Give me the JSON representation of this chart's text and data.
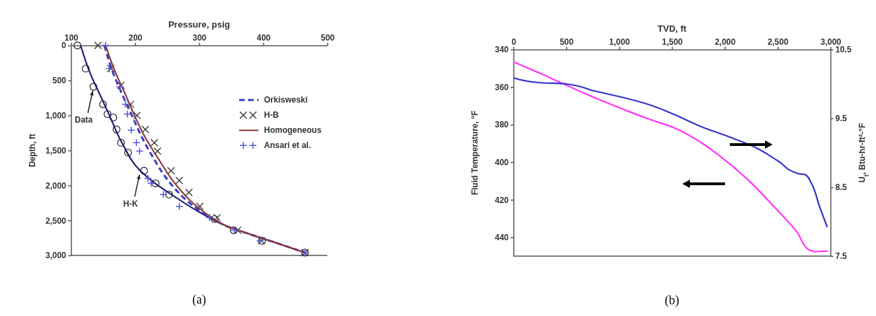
{
  "chart_data": [
    {
      "type": "line",
      "xlabel": "Pressure, psig",
      "ylabel": "Depth, ft",
      "xlim": [
        100,
        500
      ],
      "xticks": [
        100,
        200,
        300,
        400,
        500
      ],
      "ylim": [
        3000,
        0
      ],
      "yticks": [
        0,
        500,
        {
          "value": 1000,
          "label": "1,000"
        },
        {
          "value": 1500,
          "label": "1,500"
        },
        {
          "value": 2000,
          "label": "2,000"
        },
        {
          "value": 2500,
          "label": "2,500"
        },
        {
          "value": 3000,
          "label": "3,000"
        }
      ],
      "grid": false,
      "legend": "right",
      "series": [
        {
          "type": "scatter",
          "marker": "circle",
          "color": "#333333",
          "x": [
            110,
            123,
            135,
            150,
            157,
            166,
            171,
            178,
            189,
            214,
            232,
            253,
            324,
            354,
            398,
            465
          ],
          "values": [
            0,
            330,
            590,
            840,
            980,
            1030,
            1200,
            1390,
            1530,
            1790,
            1970,
            2130,
            2480,
            2640,
            2790,
            2960
          ]
        },
        {
          "color": "#1c1c6e",
          "x": [
            115,
            130,
            145,
            159,
            180,
            208,
            230,
            260,
            300,
            340,
            380,
            420,
            465
          ],
          "values": [
            0,
            400,
            700,
            980,
            1400,
            1790,
            1960,
            2150,
            2380,
            2570,
            2700,
            2820,
            2960
          ]
        },
        {
          "name": "Orkisweski",
          "line_style": "dashed",
          "color": "#3a3acb",
          "x": [
            152,
            166,
            180,
            194,
            210,
            228,
            255,
            285,
            318,
            345,
            380,
            420,
            465
          ],
          "values": [
            0,
            400,
            700,
            980,
            1300,
            1600,
            1970,
            2250,
            2460,
            2590,
            2700,
            2820,
            2960
          ]
        },
        {
          "type": "scatter",
          "name": "H-B",
          "marker": "x",
          "color": "#333333",
          "x": [
            142,
            162,
            178,
            193,
            203,
            216,
            230,
            235,
            256,
            269,
            284,
            301,
            328,
            360,
            397,
            465
          ],
          "values": [
            0,
            330,
            570,
            840,
            1000,
            1200,
            1390,
            1510,
            1790,
            1930,
            2100,
            2300,
            2460,
            2640,
            2790,
            2960
          ]
        },
        {
          "name": "Homogeneous",
          "color": "#8b3a3a",
          "x": [
            154,
            170,
            185,
            198,
            215,
            235,
            262,
            290,
            320,
            345,
            380,
            420,
            465
          ],
          "values": [
            0,
            400,
            700,
            980,
            1300,
            1600,
            1970,
            2250,
            2460,
            2590,
            2700,
            2820,
            2960
          ]
        },
        {
          "type": "scatter",
          "name": "Ansari et al.",
          "marker": "cross",
          "color": "#5555dd",
          "x": [
            154,
            160,
            176,
            185,
            188,
            194,
            202,
            207,
            220,
            225,
            244,
            269,
            316,
            355,
            395,
            465
          ],
          "values": [
            0,
            330,
            590,
            840,
            980,
            1210,
            1390,
            1510,
            1900,
            1970,
            2130,
            2300,
            2460,
            2640,
            2790,
            2960
          ]
        }
      ],
      "annotations": [
        {
          "text": "Data",
          "x": 135,
          "y": 590
        },
        {
          "text": "H-K",
          "x": 208,
          "y": 1787
        },
        "(a)"
      ]
    },
    {
      "type": "line",
      "xlabel": "TVD, ft",
      "ylabel": "Fluid Temperature, °F",
      "y2label": "U$_{t}$, Btu-hr-ft²-°F",
      "xlim": [
        0,
        3000
      ],
      "xticks": [
        0,
        500,
        {
          "value": 1000,
          "label": "1,000"
        },
        {
          "value": 1500,
          "label": "1,500"
        },
        {
          "value": 2000,
          "label": "2,000"
        },
        {
          "value": 2500,
          "label": "2,500"
        },
        {
          "value": 3000,
          "label": "3,000"
        }
      ],
      "ylim": [
        450,
        340
      ],
      "yticks": [
        340,
        360,
        380,
        400,
        420,
        440
      ],
      "y2lim": [
        7.5,
        10.5
      ],
      "y2ticks": [
        7.5,
        8.5,
        9.5,
        10.5
      ],
      "grid": false,
      "series": [
        {
          "color": "#ff33ff",
          "x": [
            0,
            242,
            502,
            762,
            1049,
            1257,
            1517,
            1777,
            1959,
            2246,
            2454,
            2688,
            2792,
            2844,
            2974
          ],
          "values": [
            346.6,
            352.4,
            359,
            365.5,
            372,
            376.5,
            381.6,
            389.6,
            397,
            410.8,
            423,
            437.6,
            446.6,
            447.7,
            447.3
          ]
        },
        {
          "color": "#3333cc",
          "axis": "y2",
          "x": [
            0,
            242,
            502,
            762,
            1049,
            1283,
            1517,
            1777,
            2063,
            2246,
            2506,
            2688,
            2766,
            2818,
            2896,
            2969
          ],
          "values": [
            10.09,
            10.02,
            10.0,
            9.9,
            9.8,
            9.7,
            9.56,
            9.38,
            9.22,
            9.11,
            8.88,
            8.7,
            8.68,
            8.56,
            8.22,
            7.92
          ]
        }
      ],
      "annotations": [
        "(b)"
      ]
    }
  ]
}
